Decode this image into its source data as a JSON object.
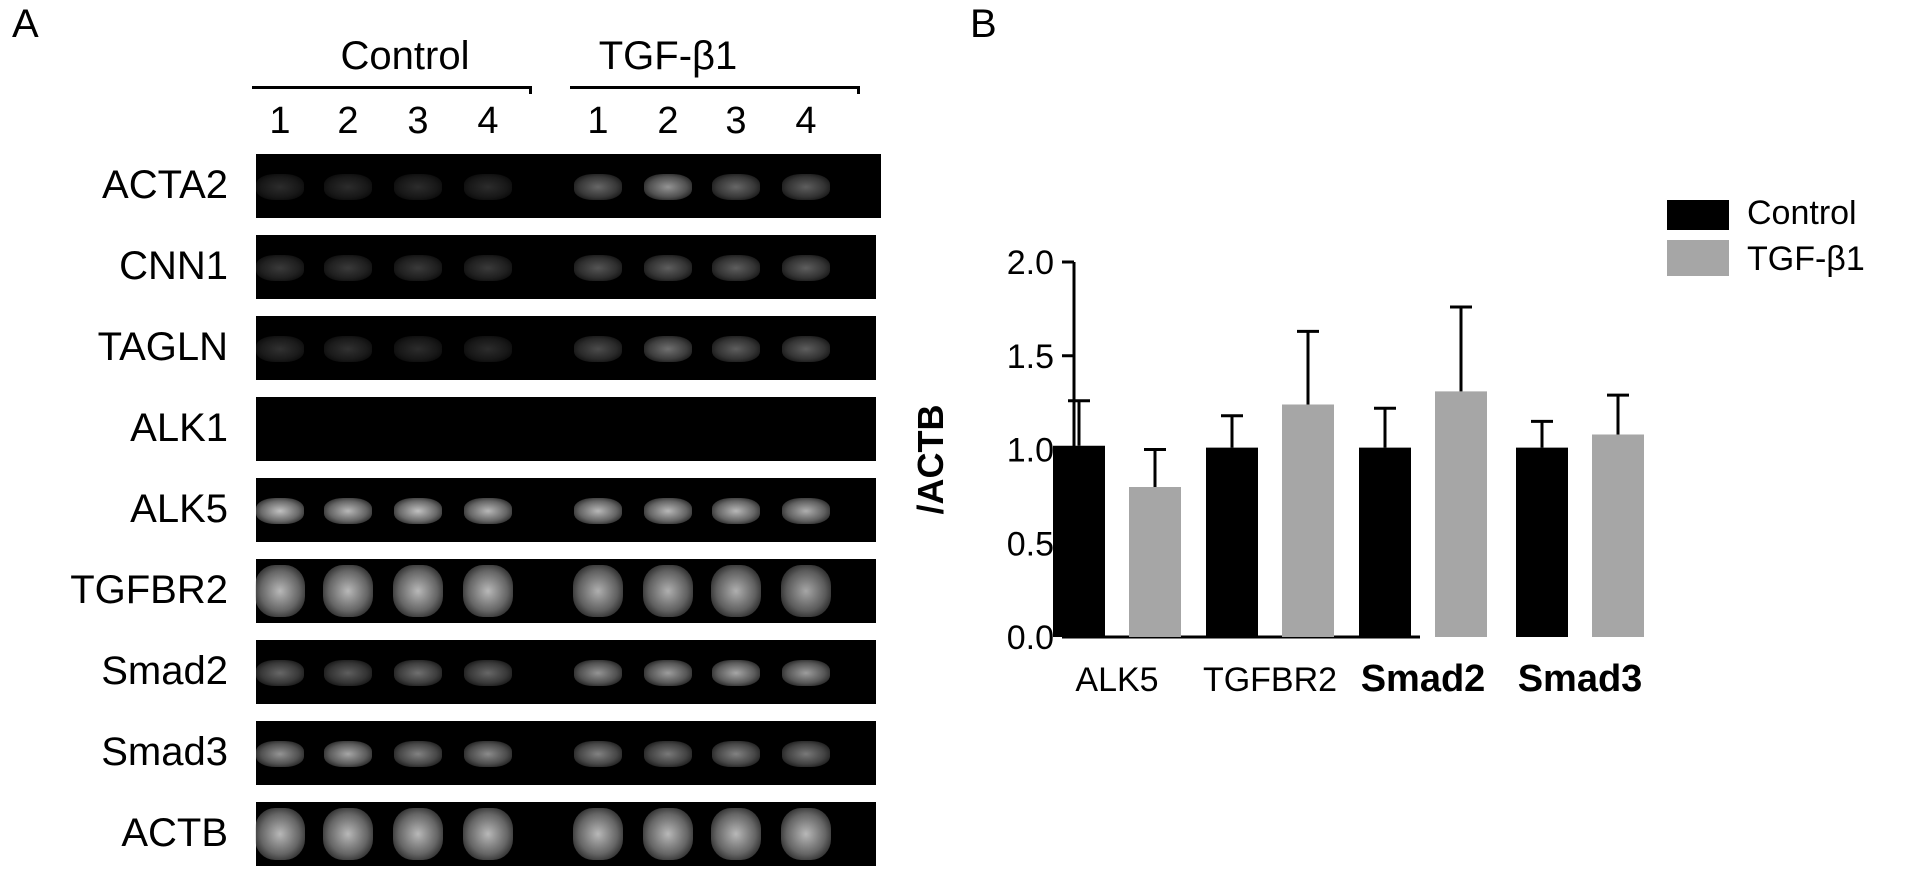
{
  "panel_a": {
    "letter": "A",
    "groups": [
      {
        "label": "Control",
        "lanes": [
          "1",
          "2",
          "3",
          "4"
        ]
      },
      {
        "label": "TGF-β1",
        "lanes": [
          "1",
          "2",
          "3",
          "4"
        ]
      }
    ],
    "genes": [
      "ACTA2",
      "CNN1",
      "TAGLN",
      "ALK1",
      "ALK5",
      "TGFBR2",
      "Smad2",
      "Smad3",
      "ACTB"
    ],
    "band_intensity": [
      [
        0.02,
        0.02,
        0.02,
        0.02,
        0.35,
        0.6,
        0.35,
        0.3
      ],
      [
        0.1,
        0.1,
        0.1,
        0.1,
        0.25,
        0.3,
        0.3,
        0.3
      ],
      [
        0.05,
        0.05,
        0.02,
        0.02,
        0.2,
        0.4,
        0.3,
        0.3
      ],
      [
        0,
        0,
        0,
        0,
        0,
        0,
        0,
        0
      ],
      [
        0.85,
        0.8,
        0.85,
        0.8,
        0.8,
        0.8,
        0.8,
        0.75
      ],
      [
        0.8,
        0.8,
        0.8,
        0.8,
        0.75,
        0.75,
        0.75,
        0.7
      ],
      [
        0.35,
        0.3,
        0.4,
        0.35,
        0.6,
        0.65,
        0.7,
        0.65
      ],
      [
        0.6,
        0.7,
        0.5,
        0.55,
        0.5,
        0.45,
        0.5,
        0.45
      ],
      [
        0.8,
        0.8,
        0.8,
        0.8,
        0.8,
        0.8,
        0.8,
        0.8
      ]
    ]
  },
  "panel_b": {
    "letter": "B"
  },
  "chart_data": {
    "type": "bar",
    "categories": [
      "ALK5",
      "TGFBR2",
      "Smad2",
      "Smad3"
    ],
    "series": [
      {
        "name": "Control",
        "values": [
          1.02,
          1.01,
          1.01,
          1.01
        ],
        "errors": [
          0.24,
          0.17,
          0.21,
          0.14
        ],
        "color": "#000000"
      },
      {
        "name": "TGF-β1",
        "values": [
          0.8,
          1.24,
          1.31,
          1.08
        ],
        "errors": [
          0.2,
          0.39,
          0.45,
          0.21
        ],
        "color": "#a6a6a6"
      }
    ],
    "ylabel": "/ACTB",
    "ylim": [
      0,
      2.0
    ],
    "yticks": [
      "0.0",
      "0.5",
      "1.0",
      "1.5",
      "2.0"
    ],
    "grid": false,
    "legend": "top-right"
  }
}
